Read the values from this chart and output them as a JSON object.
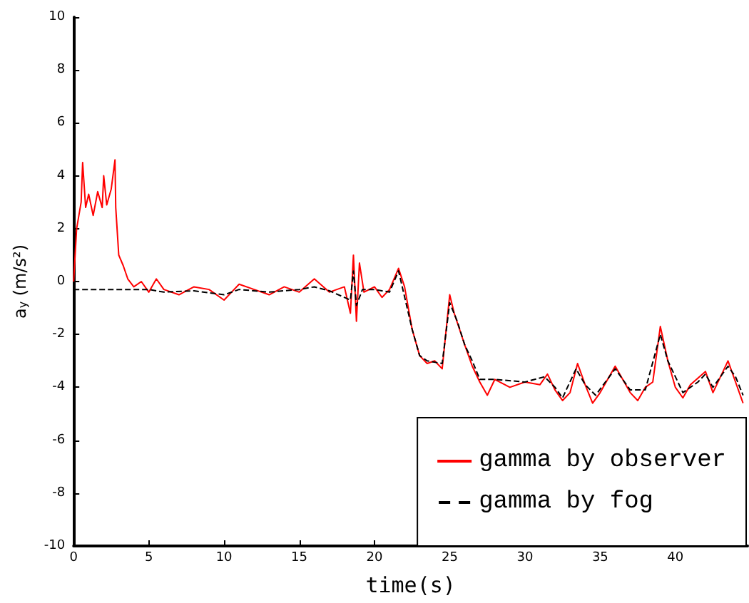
{
  "chart_data": {
    "type": "line",
    "xlabel": "time(s)",
    "ylabel": "a$_{y}$ (m/s²)",
    "xlim": [
      0,
      44.8
    ],
    "xticks": [
      0,
      5,
      10,
      15,
      20,
      25,
      30,
      35,
      40
    ],
    "ylim": [
      -10,
      10
    ],
    "yticks": [
      -10,
      -8,
      -6,
      -4,
      -2,
      0,
      2,
      4,
      6,
      8,
      10
    ],
    "grid": false,
    "legend": "bottom right",
    "marker": "none",
    "series": [
      {
        "name": "gamma by observer",
        "color": "#ff0000",
        "line_style": "solid",
        "x": [
          0,
          0.2,
          0.5,
          0.6,
          0.8,
          1.0,
          1.3,
          1.6,
          1.9,
          2.0,
          2.2,
          2.5,
          2.75,
          2.8,
          3.0,
          3.3,
          3.6,
          4,
          4.5,
          5,
          5.5,
          6,
          7,
          8,
          9,
          10,
          10.5,
          11,
          12,
          13,
          14,
          15,
          16,
          17,
          18,
          18.4,
          18.6,
          18.8,
          19,
          19.3,
          20,
          20.5,
          21,
          21.6,
          22,
          22.5,
          23,
          23.5,
          24,
          24.5,
          25,
          25.3,
          26,
          26.5,
          27,
          27.5,
          28,
          29,
          30,
          31,
          31.5,
          32,
          32.5,
          33,
          33.5,
          34,
          34.5,
          35,
          36,
          37,
          37.5,
          38,
          38.5,
          39,
          39.5,
          40,
          40.5,
          41,
          42,
          42.5,
          43.5,
          44,
          44.5
        ],
        "values": [
          0,
          2,
          3,
          4.5,
          2.8,
          3.3,
          2.5,
          3.4,
          2.8,
          4.0,
          2.9,
          3.5,
          4.6,
          2.8,
          1.0,
          0.6,
          0.1,
          -0.2,
          0,
          -0.4,
          0.1,
          -0.3,
          -0.5,
          -0.2,
          -0.3,
          -0.7,
          -0.4,
          -0.1,
          -0.3,
          -0.5,
          -0.2,
          -0.4,
          0.1,
          -0.4,
          -0.2,
          -1.2,
          1.0,
          -1.5,
          0.7,
          -0.4,
          -0.2,
          -0.6,
          -0.3,
          0.5,
          -0.2,
          -1.8,
          -2.8,
          -3.1,
          -3.0,
          -3.3,
          -0.5,
          -1.2,
          -2.4,
          -3.2,
          -3.8,
          -4.3,
          -3.7,
          -4.0,
          -3.8,
          -3.9,
          -3.5,
          -4.1,
          -4.5,
          -4.2,
          -3.1,
          -3.9,
          -4.6,
          -4.2,
          -3.2,
          -4.2,
          -4.5,
          -4.0,
          -3.8,
          -1.7,
          -3.0,
          -4.0,
          -4.4,
          -3.9,
          -3.4,
          -4.2,
          -3.0,
          -3.8,
          -4.6
        ]
      },
      {
        "name": "gamma by fog",
        "color": "#000000",
        "line_style": "dashed",
        "x": [
          0,
          2,
          4,
          5,
          6,
          8,
          10,
          11,
          13,
          15,
          16,
          17,
          18.4,
          18.6,
          18.8,
          19.2,
          20,
          21,
          21.6,
          22.5,
          23,
          23.5,
          24.5,
          25,
          25.5,
          26,
          26.5,
          27,
          28,
          30,
          31.3,
          32,
          32.5,
          33.4,
          34,
          34.7,
          36,
          37,
          38,
          39,
          39.5,
          40.5,
          41.5,
          42,
          42.5,
          43.5,
          44,
          44.5
        ],
        "values": [
          -0.3,
          -0.3,
          -0.3,
          -0.3,
          -0.4,
          -0.35,
          -0.5,
          -0.3,
          -0.4,
          -0.3,
          -0.2,
          -0.35,
          -0.7,
          0.4,
          -0.9,
          -0.3,
          -0.3,
          -0.4,
          0.4,
          -1.8,
          -2.8,
          -3.0,
          -3.1,
          -0.8,
          -1.5,
          -2.4,
          -3.0,
          -3.7,
          -3.7,
          -3.8,
          -3.6,
          -4.0,
          -4.4,
          -3.3,
          -3.9,
          -4.3,
          -3.3,
          -4.1,
          -4.1,
          -2.0,
          -3.0,
          -4.2,
          -3.8,
          -3.5,
          -4.0,
          -3.2,
          -3.6,
          -4.3
        ]
      }
    ]
  }
}
